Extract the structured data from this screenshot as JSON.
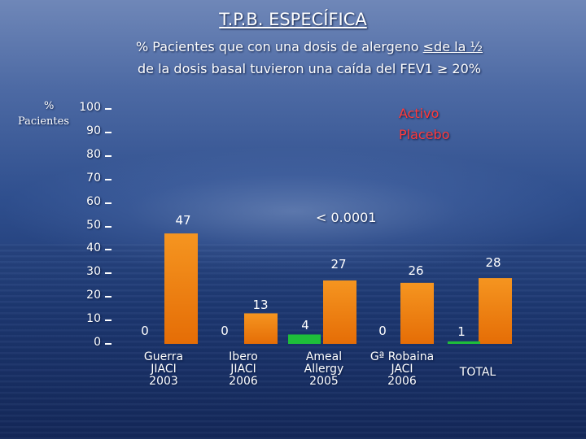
{
  "title": "T.P.B. ESPECÍFICA",
  "subtitle": {
    "line1_prefix": "% Pacientes que con una dosis de alergeno ",
    "line1_underlined": "≤de la ½",
    "line2": "de la dosis basal tuvieron una caída del FEV1 ≥ 20%"
  },
  "colors": {
    "activo": "#f27f10",
    "placebo": "#1ebe3a",
    "legend_text": "#ff3a3a",
    "text": "#ffffff"
  },
  "chart_data": {
    "type": "bar",
    "ylabel": [
      "%",
      "Pacientes"
    ],
    "ylim": [
      0,
      100
    ],
    "yticks": [
      0,
      10,
      20,
      30,
      40,
      50,
      60,
      70,
      80,
      90,
      100
    ],
    "legend": "top-right",
    "grid": false,
    "categories": [
      [
        "Guerra",
        "JIACI",
        "2003"
      ],
      [
        "Ibero",
        "JIACI",
        "2006"
      ],
      [
        "Ameal",
        "Allergy",
        "2005"
      ],
      [
        "Gª Robaina",
        "JACI",
        "2006"
      ],
      [
        "TOTAL"
      ]
    ],
    "series": [
      {
        "name": "Activo",
        "values": [
          47,
          13,
          27,
          26,
          28
        ],
        "labels": [
          "47",
          "13",
          "27",
          "26",
          "28"
        ]
      },
      {
        "name": "Placebo",
        "values": [
          0,
          0,
          4,
          0,
          1
        ],
        "labels": [
          "0",
          "0",
          "4",
          "0",
          "1"
        ]
      }
    ],
    "annotations": [
      "< 0.0001"
    ]
  }
}
